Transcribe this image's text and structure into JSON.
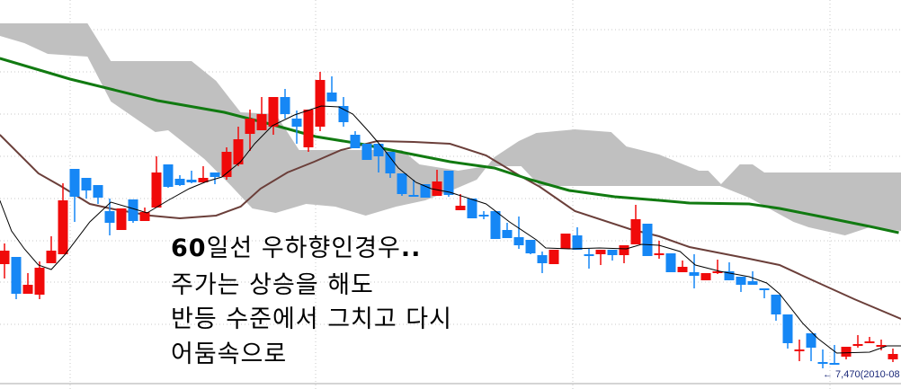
{
  "chart_data": {
    "type": "candlestick",
    "title": "",
    "xlabel": "",
    "ylabel": "",
    "grid": true,
    "colors": {
      "up": "#f00a0a",
      "down": "#1687f5",
      "ma5": "#000000",
      "ma20": "#6b3f3a",
      "ma60": "#117a11",
      "cloud": "#c0c0c0",
      "grid": "#c8c8c8",
      "price_label": "#1c2a7a"
    },
    "candles": [
      [
        8630,
        8860,
        8470,
        8780
      ],
      [
        8710,
        8710,
        8240,
        8300
      ],
      [
        8300,
        8530,
        8300,
        8400
      ],
      [
        8290,
        8660,
        8240,
        8590
      ],
      [
        8640,
        8940,
        8640,
        8780
      ],
      [
        8740,
        9530,
        8740,
        9340
      ],
      [
        9690,
        9690,
        9100,
        9380
      ],
      [
        9590,
        9590,
        9360,
        9450
      ],
      [
        9510,
        9510,
        9300,
        9370
      ],
      [
        9220,
        9360,
        8950,
        9090
      ],
      [
        9010,
        9250,
        9010,
        9250
      ],
      [
        9350,
        9350,
        9090,
        9110
      ],
      [
        9110,
        9260,
        9110,
        9210
      ],
      [
        9260,
        9830,
        9260,
        9650
      ],
      [
        9740,
        9740,
        9480,
        9490
      ],
      [
        9580,
        9620,
        9500,
        9510
      ],
      [
        9570,
        9670,
        9530,
        9540
      ],
      [
        9540,
        9720,
        9540,
        9590
      ],
      [
        9650,
        9650,
        9520,
        9600
      ],
      [
        9600,
        9930,
        9570,
        9880
      ],
      [
        9740,
        10160,
        9720,
        10020
      ],
      [
        10080,
        10350,
        9890,
        10250
      ],
      [
        10120,
        10490,
        10120,
        10300
      ],
      [
        10160,
        10490,
        10070,
        10490
      ],
      [
        10490,
        10580,
        10250,
        10300
      ],
      [
        10250,
        10340,
        9970,
        10160
      ],
      [
        9930,
        10350,
        9880,
        10350
      ],
      [
        10160,
        10770,
        10110,
        10680
      ],
      [
        10540,
        10720,
        10440,
        10440
      ],
      [
        10390,
        10490,
        10160,
        10210
      ],
      [
        10070,
        10110,
        9920,
        9920
      ],
      [
        9970,
        9970,
        9790,
        9790
      ],
      [
        9970,
        9970,
        9650,
        9830
      ],
      [
        9880,
        9880,
        9590,
        9640
      ],
      [
        9640,
        9640,
        9390,
        9410
      ],
      [
        9400,
        9570,
        9380,
        9390
      ],
      [
        9520,
        9520,
        9370,
        9370
      ],
      [
        9390,
        9680,
        9390,
        9550
      ],
      [
        9670,
        9670,
        9380,
        9400
      ],
      [
        9230,
        9410,
        9230,
        9280
      ],
      [
        9360,
        9360,
        9140,
        9140
      ],
      [
        9180,
        9220,
        9130,
        9170
      ],
      [
        9220,
        9220,
        8910,
        8910
      ],
      [
        9010,
        9090,
        8920,
        8920
      ],
      [
        8930,
        9160,
        8800,
        8840
      ],
      [
        8900,
        8900,
        8740,
        8750
      ],
      [
        8730,
        8770,
        8530,
        8640
      ],
      [
        8630,
        8790,
        8630,
        8790
      ],
      [
        8800,
        8970,
        8800,
        8970
      ],
      [
        8950,
        9040,
        8790,
        8790
      ],
      [
        8740,
        8800,
        8580,
        8730
      ],
      [
        8740,
        8790,
        8620,
        8790
      ],
      [
        8790,
        8790,
        8670,
        8730
      ],
      [
        8730,
        8840,
        8640,
        8840
      ],
      [
        8850,
        9290,
        8850,
        9130
      ],
      [
        9080,
        9080,
        8720,
        8720
      ],
      [
        8740,
        8890,
        8690,
        8750
      ],
      [
        8750,
        8750,
        8540,
        8540
      ],
      [
        8540,
        8670,
        8540,
        8600
      ],
      [
        8540,
        8740,
        8360,
        8500
      ],
      [
        8450,
        8530,
        8450,
        8530
      ],
      [
        8540,
        8680,
        8520,
        8550
      ],
      [
        8550,
        8650,
        8450,
        8450
      ],
      [
        8490,
        8490,
        8320,
        8400
      ],
      [
        8440,
        8550,
        8400,
        8400
      ],
      [
        8360,
        8360,
        8250,
        8340
      ],
      [
        8290,
        8290,
        8000,
        8070
      ],
      [
        8070,
        8070,
        7690,
        7750
      ],
      [
        7670,
        7790,
        7550,
        7680
      ],
      [
        7860,
        7860,
        7550,
        7700
      ],
      [
        7540,
        7680,
        7470,
        7530
      ],
      [
        7530,
        7730,
        7520,
        7520
      ],
      [
        7600,
        7710,
        7570,
        7710
      ],
      [
        7730,
        7840,
        7700,
        7740
      ],
      [
        7760,
        7820,
        7750,
        7770
      ],
      [
        7720,
        7790,
        7670,
        7730
      ],
      [
        7570,
        7690,
        7540,
        7630
      ]
    ],
    "candle_fields": [
      "open",
      "high",
      "low",
      "close"
    ],
    "lines": {
      "ma5": [
        [
          -0.4,
          9340
        ],
        [
          0.6,
          9000
        ],
        [
          1.7,
          8800
        ],
        [
          2.9,
          8620
        ],
        [
          4,
          8570
        ],
        [
          5.2,
          8740
        ],
        [
          7.3,
          9100
        ],
        [
          9.1,
          9320
        ],
        [
          11.2,
          9240
        ],
        [
          12.2,
          9200
        ],
        [
          14,
          9340
        ],
        [
          15.8,
          9470
        ],
        [
          17.3,
          9550
        ],
        [
          18.6,
          9600
        ],
        [
          20.2,
          9770
        ],
        [
          21.4,
          9970
        ],
        [
          22.9,
          10170
        ],
        [
          24.8,
          10290
        ],
        [
          27.1,
          10390
        ],
        [
          28.6,
          10380
        ],
        [
          29.8,
          10300
        ],
        [
          31.2,
          10100
        ],
        [
          32.5,
          9900
        ],
        [
          33.7,
          9700
        ],
        [
          35.2,
          9540
        ],
        [
          36.5,
          9470
        ],
        [
          38.1,
          9430
        ],
        [
          41.2,
          9300
        ],
        [
          43.2,
          9100
        ],
        [
          45.5,
          8900
        ],
        [
          46.3,
          8810
        ],
        [
          48.3,
          8800
        ],
        [
          50.9,
          8810
        ],
        [
          53.2,
          8800
        ],
        [
          54.5,
          8850
        ],
        [
          56,
          8840
        ],
        [
          57.8,
          8770
        ],
        [
          59.1,
          8620
        ],
        [
          61.2,
          8550
        ],
        [
          63.7,
          8490
        ],
        [
          65.2,
          8420
        ],
        [
          66.3,
          8300
        ],
        [
          68.3,
          7970
        ],
        [
          69.6,
          7800
        ],
        [
          71.2,
          7640
        ],
        [
          74,
          7650
        ],
        [
          75.5,
          7720
        ],
        [
          76.7,
          7720
        ]
      ],
      "ma20": [
        [
          -0.4,
          10070
        ],
        [
          2.9,
          9640
        ],
        [
          4.8,
          9500
        ],
        [
          7.3,
          9300
        ],
        [
          9.4,
          9240
        ],
        [
          12.5,
          9170
        ],
        [
          15,
          9140
        ],
        [
          18.1,
          9170
        ],
        [
          20.2,
          9270
        ],
        [
          21.9,
          9470
        ],
        [
          24.2,
          9650
        ],
        [
          26.5,
          9770
        ],
        [
          28.8,
          9900
        ],
        [
          31.9,
          10000
        ],
        [
          35,
          9990
        ],
        [
          38.1,
          9970
        ],
        [
          41.2,
          9840
        ],
        [
          44,
          9620
        ],
        [
          45.8,
          9490
        ],
        [
          48.8,
          9220
        ],
        [
          53.5,
          9020
        ],
        [
          56,
          8940
        ],
        [
          58.6,
          8820
        ],
        [
          63.7,
          8690
        ],
        [
          66.3,
          8620
        ],
        [
          68.8,
          8470
        ],
        [
          72.7,
          8240
        ],
        [
          76.7,
          8020
        ]
      ],
      "ma60": [
        [
          -0.4,
          10920
        ],
        [
          5.6,
          10690
        ],
        [
          13.1,
          10450
        ],
        [
          18.8,
          10320
        ],
        [
          22.7,
          10190
        ],
        [
          26.6,
          10050
        ],
        [
          30.4,
          9970
        ],
        [
          34.2,
          9870
        ],
        [
          38.1,
          9770
        ],
        [
          41.9,
          9700
        ],
        [
          45,
          9570
        ],
        [
          48.3,
          9450
        ],
        [
          52.2,
          9380
        ],
        [
          56,
          9340
        ],
        [
          58.6,
          9310
        ],
        [
          63.7,
          9300
        ],
        [
          66.3,
          9250
        ],
        [
          70.2,
          9150
        ],
        [
          74,
          9050
        ],
        [
          76.5,
          8980
        ]
      ]
    },
    "cloud": {
      "span_a": [
        [
          -0.4,
          11310
        ],
        [
          7.1,
          11310
        ],
        [
          9.1,
          10890
        ],
        [
          16,
          10890
        ],
        [
          18.1,
          10670
        ],
        [
          20.2,
          10320
        ],
        [
          23.2,
          10300
        ],
        [
          25.2,
          9900
        ],
        [
          34,
          9900
        ],
        [
          35.5,
          9740
        ],
        [
          38.8,
          9670
        ],
        [
          41.2,
          9720
        ],
        [
          44.2,
          9720
        ],
        [
          45.8,
          9500
        ],
        [
          61.2,
          9500
        ],
        [
          63.7,
          9370
        ],
        [
          67.5,
          9100
        ],
        [
          68.8,
          9040
        ],
        [
          71.9,
          8950
        ],
        [
          74,
          9040
        ],
        [
          76.7,
          9000
        ]
      ],
      "span_b": [
        [
          -0.4,
          11170
        ],
        [
          1.7,
          11090
        ],
        [
          3.7,
          10970
        ],
        [
          7.1,
          10940
        ],
        [
          9.1,
          10440
        ],
        [
          12.9,
          10100
        ],
        [
          14,
          10120
        ],
        [
          17.1,
          9800
        ],
        [
          19.4,
          9500
        ],
        [
          21.2,
          9250
        ],
        [
          23.2,
          9200
        ],
        [
          25.8,
          9300
        ],
        [
          28.3,
          9270
        ],
        [
          30.9,
          9170
        ],
        [
          33.5,
          9270
        ],
        [
          36,
          9340
        ],
        [
          38.6,
          9470
        ],
        [
          40.4,
          9570
        ],
        [
          41.9,
          9820
        ],
        [
          44,
          10000
        ],
        [
          45.5,
          10090
        ],
        [
          48.8,
          10130
        ],
        [
          51.9,
          10100
        ],
        [
          53.2,
          9940
        ],
        [
          56,
          9850
        ],
        [
          59.4,
          9670
        ],
        [
          60.2,
          9670
        ],
        [
          61.3,
          9520
        ],
        [
          62.9,
          9740
        ],
        [
          64,
          9740
        ],
        [
          65,
          9650
        ],
        [
          76.7,
          9650
        ]
      ]
    },
    "low_marker": {
      "text": "← 7,470(2010-08",
      "price": 7470
    }
  },
  "annotation": {
    "line1_bold": "60",
    "line1_text": "일선 우하향인경우",
    "line1_dots": "..",
    "line2": "주가는 상승을 해도",
    "line3": "반등 수준에서 그치고 다시",
    "line4": "어둠속으로"
  }
}
